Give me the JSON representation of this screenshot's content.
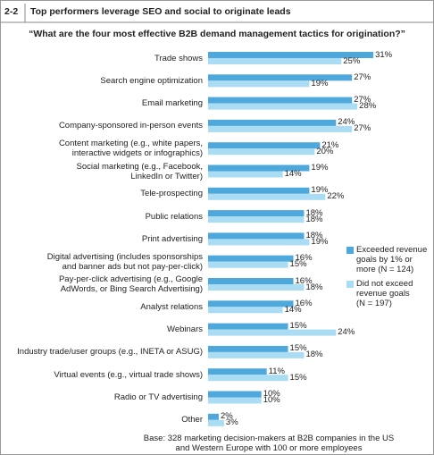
{
  "chart_data": {
    "type": "bar",
    "figure_number": "2-2",
    "title": "Top performers leverage SEO and social to originate leads",
    "subtitle": "“What are the four most effective B2B demand management tactics for origination?”",
    "categories": [
      "Trade shows",
      "Search engine optimization",
      "Email marketing",
      "Company-sponsored in-person events",
      "Content marketing (e.g., white papers,\ninteractive widgets or infographics)",
      "Social marketing (e.g., Facebook,\nLinkedIn or Twitter)",
      "Tele-prospecting",
      "Public relations",
      "Print advertising",
      "Digital advertising (includes sponsorships\nand banner ads but not pay-per-click)",
      "Pay-per-click advertising (e.g., Google\nAdWords, or Bing Search Advertising)",
      "Analyst relations",
      "Webinars",
      "Industry trade/user groups (e.g., INETA or ASUG)",
      "Virtual events (e.g., virtual trade shows)",
      "Radio or TV advertising",
      "Other"
    ],
    "series": [
      {
        "name": "Exceeded revenue\ngoals by 1% or\nmore (N = 124)",
        "color": "#4ea8dc",
        "values": [
          31,
          27,
          27,
          24,
          21,
          19,
          19,
          18,
          18,
          16,
          16,
          16,
          15,
          15,
          11,
          10,
          2
        ],
        "value_labels": [
          "31%",
          "27%",
          "27%",
          "24%",
          "21%",
          "19%",
          "19%",
          "18%",
          "18%",
          "16%",
          "16%",
          "16%",
          "15%",
          "15%",
          "11%",
          "10%",
          "2%"
        ]
      },
      {
        "name": "Did not exceed\nrevenue goals\n(N = 197)",
        "color": "#aadcf4",
        "values": [
          25,
          19,
          28,
          27,
          20,
          14,
          22,
          18,
          19,
          15,
          18,
          14,
          24,
          18,
          15,
          10,
          3
        ],
        "value_labels": [
          "25%",
          "19%",
          "28%",
          "27%",
          "20%",
          "14%",
          "22%",
          "18%",
          "19%",
          "15%",
          "18%",
          "14%",
          "24%",
          "18%",
          "15%",
          "10%",
          "3%"
        ]
      }
    ],
    "orientation": "horizontal",
    "note": "Base: 328 marketing decision-makers at B2B companies in the US\nand Western Europe with 100 or more employees"
  }
}
